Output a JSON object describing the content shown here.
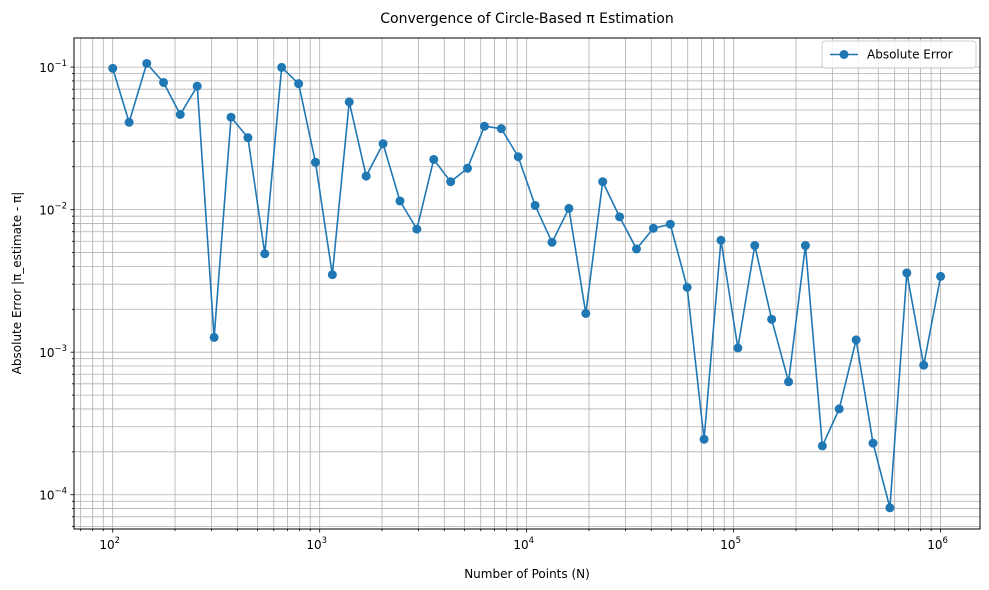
{
  "chart_data": {
    "type": "line",
    "title": "Convergence of Circle-Based π Estimation",
    "xlabel": "Number of Points (N)",
    "ylabel": "Absolute Error |π_estimate - π|",
    "xscale": "log",
    "yscale": "log",
    "xlim": [
      65,
      1550000
    ],
    "ylim": [
      5.75e-05,
      0.16
    ],
    "grid": "both-major-and-minor",
    "legend_position": "top-right",
    "x_ticks": [
      {
        "value": 100,
        "base": "10",
        "exp": "2"
      },
      {
        "value": 1000,
        "base": "10",
        "exp": "3"
      },
      {
        "value": 10000,
        "base": "10",
        "exp": "4"
      },
      {
        "value": 100000,
        "base": "10",
        "exp": "5"
      },
      {
        "value": 1000000,
        "base": "10",
        "exp": "6"
      }
    ],
    "y_ticks": [
      {
        "value": 0.0001,
        "base": "10",
        "exp": "−4"
      },
      {
        "value": 0.001,
        "base": "10",
        "exp": "−3"
      },
      {
        "value": 0.01,
        "base": "10",
        "exp": "−2"
      },
      {
        "value": 0.1,
        "base": "10",
        "exp": "−1"
      }
    ],
    "series": [
      {
        "name": "Absolute Error",
        "color": "#1f77b4",
        "marker": "circle",
        "x": [
          100,
          120,
          146,
          176,
          212,
          256,
          309,
          373,
          450,
          543,
          655,
          791,
          954,
          1151,
          1389,
          1677,
          2024,
          2442,
          2947,
          3556,
          4292,
          5179,
          6251,
          7543,
          9103,
          10985,
          13257,
          15999,
          19307,
          23300,
          28118,
          33932,
          40949,
          49417,
          59636,
          71969,
          86851,
          104811,
          126486,
          152642,
          184207,
          222300,
          268270,
          323746,
          390694,
          471487,
          568987,
          686649,
          828643,
          1000000
        ],
        "y": [
          0.098,
          0.041,
          0.106,
          0.078,
          0.0465,
          0.0735,
          0.00127,
          0.0445,
          0.032,
          0.0049,
          0.0995,
          0.0765,
          0.0215,
          0.0035,
          0.057,
          0.0172,
          0.029,
          0.0115,
          0.0073,
          0.0225,
          0.0157,
          0.0195,
          0.0385,
          0.037,
          0.0235,
          0.0107,
          0.0059,
          0.0102,
          0.00187,
          0.0157,
          0.0089,
          0.0053,
          0.0074,
          0.0079,
          0.00285,
          0.000245,
          0.0061,
          0.00107,
          0.0056,
          0.0017,
          0.00062,
          0.0056,
          0.00022,
          0.0004,
          0.00122,
          0.00023,
          8.1e-05,
          0.0036,
          0.00081,
          0.0034
        ]
      }
    ]
  }
}
